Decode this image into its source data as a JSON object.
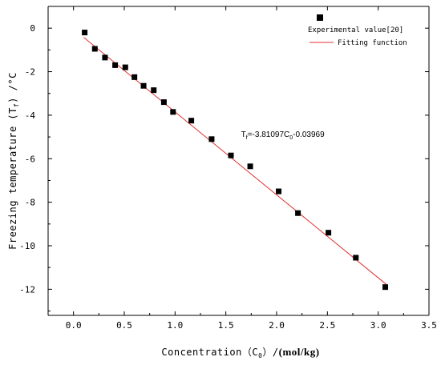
{
  "chart_data": {
    "type": "scatter",
    "xlabel": "Concentration（C",
    "xlabel_sub": "0",
    "xlabel_sep": "）/",
    "xlabel_unit": "(mol/kg)",
    "ylabel": "Freezing temperature (T",
    "ylabel_sub": "f",
    "ylabel_tail": ") /°C",
    "xlim": [
      -0.25,
      3.5
    ],
    "ylim": [
      -13.2,
      1.0
    ],
    "x_ticks": [
      "0.0",
      "0.5",
      "1.0",
      "1.5",
      "2.0",
      "2.5",
      "3.0",
      "3.5"
    ],
    "y_ticks": [
      "0",
      "-2",
      "-4",
      "-6",
      "-8",
      "-10",
      "-12"
    ],
    "grid": false,
    "legend_position": "top-right",
    "series": [
      {
        "name": "Experimental value[20]",
        "kind": "points",
        "color": "#000000",
        "x": [
          0.11,
          0.21,
          0.31,
          0.41,
          0.51,
          0.6,
          0.69,
          0.79,
          0.89,
          0.98,
          1.16,
          1.36,
          1.55,
          1.74,
          2.02,
          2.21,
          2.51,
          2.78,
          3.07
        ],
        "y": [
          -0.2,
          -0.95,
          -1.35,
          -1.7,
          -1.8,
          -2.25,
          -2.65,
          -2.85,
          -3.4,
          -3.85,
          -4.25,
          -5.1,
          -5.85,
          -6.35,
          -7.5,
          -8.5,
          -9.4,
          -10.55,
          -11.9
        ]
      },
      {
        "name": "Fitting function",
        "kind": "line",
        "color": "#e03030",
        "x": [
          0.1,
          3.08
        ],
        "y": [
          -0.421,
          -11.777
        ]
      }
    ],
    "annotation": {
      "prefix": "T",
      "prefix_sub": "f",
      "mid": "=-3.81097C",
      "mid_sub": "0",
      "tail": "-0.03969",
      "x": 1.65,
      "y": -5.0
    }
  }
}
